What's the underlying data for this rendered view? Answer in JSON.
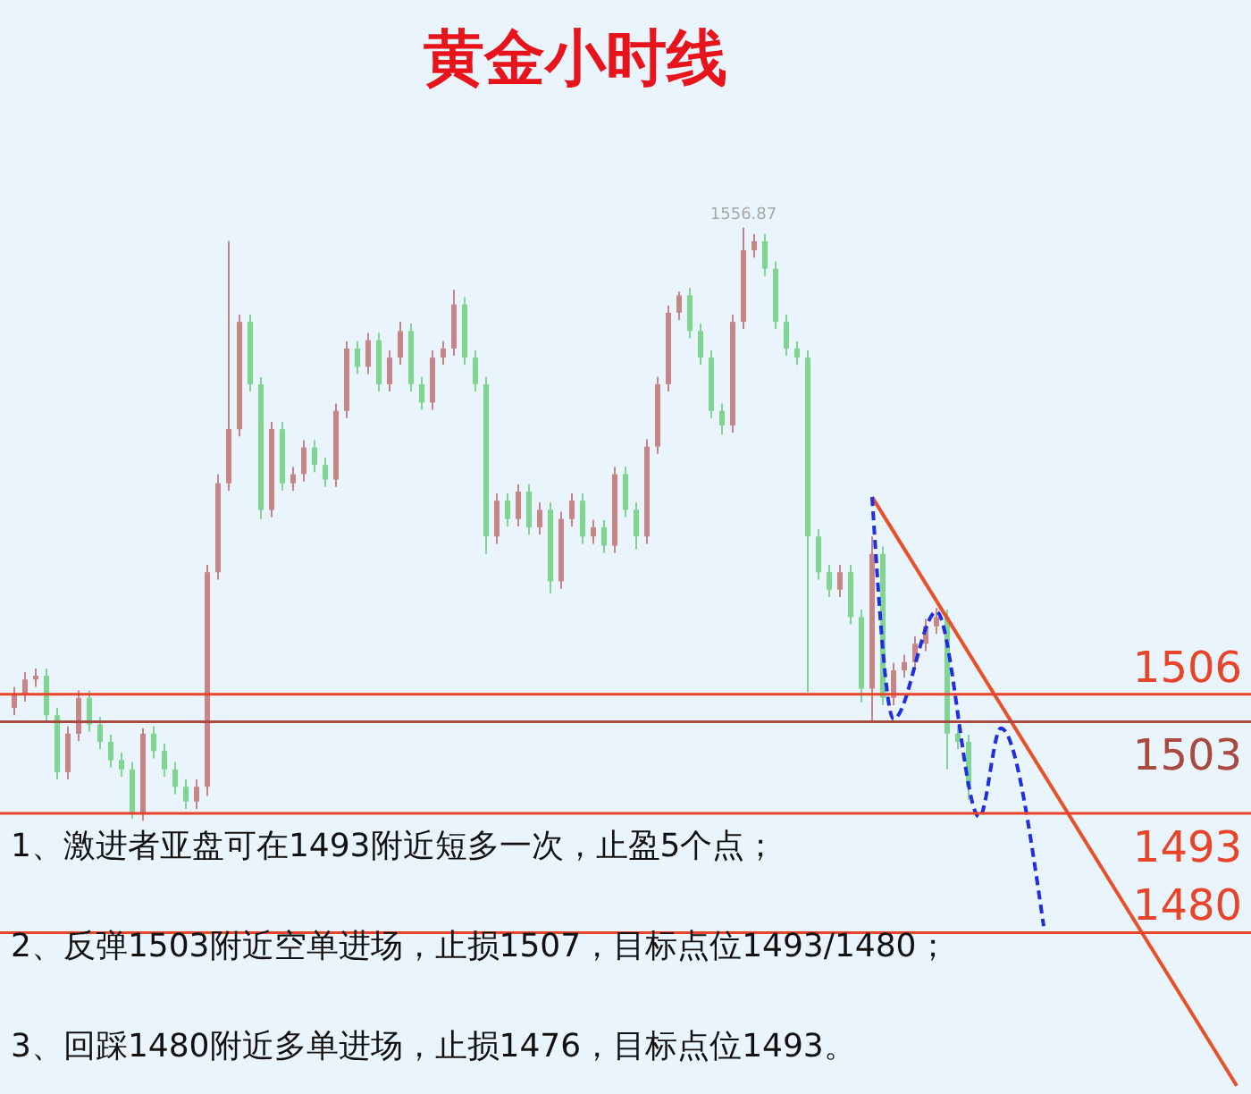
{
  "chart_data": {
    "type": "candlestick",
    "title": "黄金小时线",
    "categories": [
      null,
      null,
      null,
      null,
      null,
      null,
      null,
      null,
      null,
      null,
      null,
      null,
      null,
      null,
      null,
      null,
      null,
      null,
      null,
      null,
      null,
      null,
      null,
      null,
      null,
      null,
      null,
      null,
      null,
      null,
      null,
      null,
      null,
      null,
      null,
      null,
      null,
      null,
      null,
      null,
      null,
      null,
      null,
      null,
      null,
      null,
      null,
      null,
      null,
      null,
      null,
      null,
      null,
      null,
      null,
      null,
      null,
      null,
      null,
      null,
      null,
      null,
      null,
      null,
      null,
      null,
      null,
      null,
      null,
      null,
      null,
      null,
      null,
      null,
      null,
      null,
      null,
      null,
      null,
      null,
      null,
      null,
      null,
      null,
      null,
      null,
      null,
      null,
      null,
      null,
      null,
      null,
      null,
      null,
      null,
      null,
      null,
      null,
      null,
      null,
      null,
      null,
      null,
      null,
      null,
      null,
      null,
      null,
      null,
      null,
      null,
      null,
      null,
      null,
      null
    ],
    "ohlc": [
      [
        1504.5,
        1506.8,
        1503.7,
        1506.0
      ],
      [
        1506.0,
        1508.4,
        1505.2,
        1507.6
      ],
      [
        1507.6,
        1508.8,
        1506.8,
        1508.0
      ],
      [
        1508.0,
        1508.8,
        1502.9,
        1503.7
      ],
      [
        1503.7,
        1504.5,
        1496.7,
        1497.5
      ],
      [
        1497.5,
        1502.5,
        1496.7,
        1501.7
      ],
      [
        1501.7,
        1506.4,
        1500.9,
        1505.6
      ],
      [
        1505.6,
        1506.4,
        1501.9,
        1502.7
      ],
      [
        1502.7,
        1503.5,
        1500.0,
        1500.8
      ],
      [
        1500.8,
        1501.6,
        1498.0,
        1498.8
      ],
      [
        1498.8,
        1499.6,
        1497.0,
        1497.8
      ],
      [
        1497.8,
        1498.6,
        1492.4,
        1493.0
      ],
      [
        1493.0,
        1502.3,
        1492.2,
        1501.7
      ],
      [
        1501.7,
        1502.5,
        1499.0,
        1499.8
      ],
      [
        1499.8,
        1500.6,
        1497.0,
        1497.8
      ],
      [
        1497.8,
        1498.6,
        1495.1,
        1495.9
      ],
      [
        1495.9,
        1496.7,
        1493.5,
        1494.3
      ],
      [
        1494.3,
        1496.7,
        1493.5,
        1495.9
      ],
      [
        1495.9,
        1520.1,
        1494.9,
        1519.3
      ],
      [
        1519.3,
        1530.0,
        1518.5,
        1529.0
      ],
      [
        1529.0,
        1555.4,
        1528.2,
        1534.9
      ],
      [
        1534.9,
        1547.4,
        1534.1,
        1546.6
      ],
      [
        1546.6,
        1547.4,
        1539.0,
        1539.8
      ],
      [
        1539.8,
        1540.6,
        1525.1,
        1526.1
      ],
      [
        1526.1,
        1535.7,
        1525.3,
        1534.9
      ],
      [
        1534.9,
        1535.7,
        1528.2,
        1529.0
      ],
      [
        1529.0,
        1530.8,
        1528.2,
        1530.0
      ],
      [
        1530.0,
        1533.7,
        1529.2,
        1532.9
      ],
      [
        1532.9,
        1533.7,
        1530.2,
        1531.0
      ],
      [
        1531.0,
        1531.8,
        1528.6,
        1529.4
      ],
      [
        1529.4,
        1537.7,
        1528.6,
        1536.9
      ],
      [
        1536.9,
        1544.5,
        1536.1,
        1543.7
      ],
      [
        1543.7,
        1544.5,
        1540.9,
        1541.7
      ],
      [
        1541.7,
        1545.4,
        1540.9,
        1544.6
      ],
      [
        1544.6,
        1545.4,
        1539.0,
        1539.8
      ],
      [
        1539.8,
        1543.5,
        1539.0,
        1542.7
      ],
      [
        1542.7,
        1546.6,
        1541.9,
        1545.6
      ],
      [
        1545.6,
        1546.4,
        1539.0,
        1539.8
      ],
      [
        1539.8,
        1540.6,
        1537.0,
        1537.8
      ],
      [
        1537.8,
        1543.5,
        1537.0,
        1542.7
      ],
      [
        1542.7,
        1544.5,
        1541.9,
        1543.7
      ],
      [
        1543.7,
        1550.1,
        1542.9,
        1548.5
      ],
      [
        1548.5,
        1549.3,
        1541.9,
        1542.7
      ],
      [
        1542.7,
        1543.5,
        1539.0,
        1539.8
      ],
      [
        1539.8,
        1540.6,
        1521.3,
        1523.2
      ],
      [
        1523.2,
        1527.9,
        1522.4,
        1527.1
      ],
      [
        1527.1,
        1527.9,
        1524.3,
        1525.1
      ],
      [
        1525.1,
        1528.9,
        1524.3,
        1528.1
      ],
      [
        1528.1,
        1528.9,
        1523.4,
        1524.2
      ],
      [
        1524.2,
        1526.9,
        1523.4,
        1526.1
      ],
      [
        1526.1,
        1526.9,
        1517.0,
        1518.3
      ],
      [
        1518.3,
        1525.9,
        1517.5,
        1525.1
      ],
      [
        1525.1,
        1527.9,
        1524.3,
        1527.1
      ],
      [
        1527.1,
        1527.9,
        1522.4,
        1523.2
      ],
      [
        1523.2,
        1525.0,
        1522.4,
        1524.2
      ],
      [
        1524.2,
        1525.0,
        1521.4,
        1522.2
      ],
      [
        1522.2,
        1530.8,
        1521.4,
        1530.0
      ],
      [
        1530.0,
        1530.8,
        1525.3,
        1526.1
      ],
      [
        1526.1,
        1526.9,
        1521.8,
        1523.2
      ],
      [
        1523.2,
        1533.8,
        1522.4,
        1533.0
      ],
      [
        1533.0,
        1540.6,
        1532.2,
        1539.8
      ],
      [
        1539.8,
        1548.4,
        1539.0,
        1547.6
      ],
      [
        1547.6,
        1549.9,
        1546.8,
        1549.5
      ],
      [
        1549.5,
        1550.3,
        1544.8,
        1545.6
      ],
      [
        1545.6,
        1546.4,
        1541.9,
        1542.7
      ],
      [
        1542.7,
        1543.5,
        1536.1,
        1536.9
      ],
      [
        1536.9,
        1537.7,
        1534.3,
        1535.3
      ],
      [
        1535.3,
        1547.4,
        1534.5,
        1546.6
      ],
      [
        1546.6,
        1556.87,
        1545.8,
        1554.4
      ],
      [
        1554.4,
        1556.2,
        1553.6,
        1555.4
      ],
      [
        1555.4,
        1556.2,
        1551.6,
        1552.4
      ],
      [
        1552.4,
        1553.2,
        1545.8,
        1546.6
      ],
      [
        1546.6,
        1547.4,
        1542.9,
        1543.7
      ],
      [
        1543.7,
        1544.5,
        1541.9,
        1542.7
      ],
      [
        1542.7,
        1543.5,
        1506.2,
        1523.2
      ],
      [
        1523.2,
        1524.0,
        1518.5,
        1519.3
      ],
      [
        1519.3,
        1520.1,
        1516.6,
        1517.4
      ],
      [
        1517.4,
        1520.1,
        1516.6,
        1519.3
      ],
      [
        1519.3,
        1520.1,
        1513.6,
        1514.4
      ],
      [
        1514.4,
        1515.2,
        1505.1,
        1506.6
      ],
      [
        1506.6,
        1523.2,
        1503.1,
        1521.3
      ],
      [
        1521.3,
        1522.1,
        1504.8,
        1505.6
      ],
      [
        1505.6,
        1509.4,
        1504.8,
        1508.6
      ],
      [
        1508.6,
        1510.3,
        1507.8,
        1509.5
      ],
      [
        1509.5,
        1512.3,
        1508.7,
        1511.5
      ],
      [
        1511.5,
        1514.2,
        1510.7,
        1513.4
      ],
      [
        1513.4,
        1515.4,
        1512.6,
        1514.4
      ],
      [
        1514.4,
        1515.2,
        1497.8,
        1501.7
      ],
      [
        1501.7,
        1502.5,
        1500.0,
        1500.8
      ],
      [
        1500.8,
        1501.6,
        1494.5,
        1495.9
      ],
      null,
      null,
      null,
      null,
      null,
      null,
      null,
      null,
      null,
      null,
      null,
      null,
      null,
      null,
      null,
      null,
      null,
      null,
      null,
      null,
      null,
      null,
      null,
      null,
      null
    ],
    "colors": [
      "#c98585",
      "#c98585",
      "#c98585",
      "#7fd690",
      "#7fd690",
      "#c98585",
      "#c98585",
      "#7fd690",
      "#7fd690",
      "#7fd690",
      "#7fd690",
      "#7fd690",
      "#c98585",
      "#7fd690",
      "#7fd690",
      "#7fd690",
      "#7fd690",
      "#c98585",
      "#c98585",
      "#c98585",
      "#c98585",
      "#c98585",
      "#7fd690",
      "#7fd690",
      "#c98585",
      "#7fd690",
      "#c98585",
      "#c98585",
      "#7fd690",
      "#7fd690",
      "#c98585",
      "#c98585",
      "#7fd690",
      "#c98585",
      "#7fd690",
      "#c98585",
      "#c98585",
      "#7fd690",
      "#7fd690",
      "#c98585",
      "#c98585",
      "#c98585",
      "#7fd690",
      "#7fd690",
      "#7fd690",
      "#c98585",
      "#7fd690",
      "#c98585",
      "#7fd690",
      "#c98585",
      "#7fd690",
      "#c98585",
      "#c98585",
      "#7fd690",
      "#c98585",
      "#7fd690",
      "#c98585",
      "#7fd690",
      "#7fd690",
      "#c98585",
      "#c98585",
      "#c98585",
      "#c98585",
      "#7fd690",
      "#7fd690",
      "#7fd690",
      "#7fd690",
      "#c98585",
      "#c98585",
      "#c98585",
      "#7fd690",
      "#7fd690",
      "#7fd690",
      "#7fd690",
      "#7fd690",
      "#7fd690",
      "#7fd690",
      "#c98585",
      "#7fd690",
      "#7fd690",
      "#c98585",
      "#7fd690",
      "#c98585",
      "#c98585",
      "#c98585",
      "#c98585",
      "#c98585",
      "#7fd690",
      "#7fd690",
      "#7fd690",
      null,
      null,
      null,
      null,
      null,
      null,
      null,
      null,
      null,
      null,
      null,
      null,
      null,
      null,
      null,
      null,
      null,
      null,
      null,
      null,
      null,
      null,
      null,
      null,
      null
    ],
    "series": [
      {
        "type": "line",
        "color": "#e8502a",
        "values": [
          null,
          null,
          null,
          null,
          null,
          null,
          null,
          null,
          null,
          null,
          null,
          null,
          null,
          null,
          null,
          null,
          null,
          null,
          null,
          null,
          null,
          null,
          null,
          null,
          null,
          null,
          null,
          null,
          null,
          null,
          null,
          null,
          null,
          null,
          null,
          null,
          null,
          null,
          null,
          null,
          null,
          null,
          null,
          null,
          null,
          null,
          null,
          null,
          null,
          null,
          null,
          null,
          null,
          null,
          null,
          null,
          null,
          null,
          null,
          null,
          null,
          null,
          null,
          null,
          null,
          null,
          null,
          null,
          null,
          null,
          null,
          null,
          null,
          null,
          null,
          null,
          null,
          null,
          null,
          null,
          1527.5,
          null,
          null,
          null,
          null,
          null,
          null,
          null,
          null,
          null,
          null,
          null,
          null,
          null,
          null,
          null,
          null,
          null,
          null,
          null,
          null,
          null,
          null,
          null,
          null,
          null,
          null,
          null,
          null,
          null,
          null,
          null,
          null,
          null,
          1463.3
        ]
      },
      {
        "type": "line",
        "color": "#1f2ee0",
        "line_style": "dashed",
        "values": [
          null,
          null,
          null,
          null,
          null,
          null,
          null,
          null,
          null,
          null,
          null,
          null,
          null,
          null,
          null,
          null,
          null,
          null,
          null,
          null,
          null,
          null,
          null,
          null,
          null,
          null,
          null,
          null,
          null,
          null,
          null,
          null,
          null,
          null,
          null,
          null,
          null,
          null,
          null,
          null,
          null,
          null,
          null,
          null,
          null,
          null,
          null,
          null,
          null,
          null,
          null,
          null,
          null,
          null,
          null,
          null,
          null,
          null,
          null,
          null,
          null,
          null,
          null,
          null,
          null,
          null,
          null,
          null,
          null,
          null,
          null,
          null,
          null,
          null,
          null,
          null,
          null,
          null,
          null,
          null,
          1527.5,
          null,
          1503.3,
          null,
          null,
          null,
          1515.0,
          null,
          null,
          null,
          1492.6,
          null,
          1502.3,
          null,
          null,
          null,
          1480.7,
          null,
          null,
          null,
          null,
          null,
          null,
          null,
          null,
          null,
          null,
          null,
          null,
          null,
          null,
          null,
          null,
          null,
          null
        ]
      }
    ],
    "ylim": [
      1462.4,
      1581.7
    ],
    "ref_lines": [
      {
        "axis": "y",
        "value": 1506,
        "label": "1506",
        "color": "#e8442a"
      },
      {
        "axis": "y",
        "value": 1503,
        "label": "1503",
        "color": "#a84a40"
      },
      {
        "axis": "y",
        "value": 1493,
        "label": "1493",
        "color": "#e8442a"
      },
      {
        "axis": "y",
        "value": 1480,
        "label": "1480",
        "color": "#e8442a"
      }
    ],
    "annotations": [
      {
        "text": "1556.87",
        "y": 1556.87
      },
      "1、激进者亚盘可在1493附近短多一次，止盈5个点；",
      "2、反弹1503附近空单进场，止损1507，目标点位1493/1480；",
      "3、回踩1480附近多单进场，止损1476，目标点位1493。"
    ]
  }
}
